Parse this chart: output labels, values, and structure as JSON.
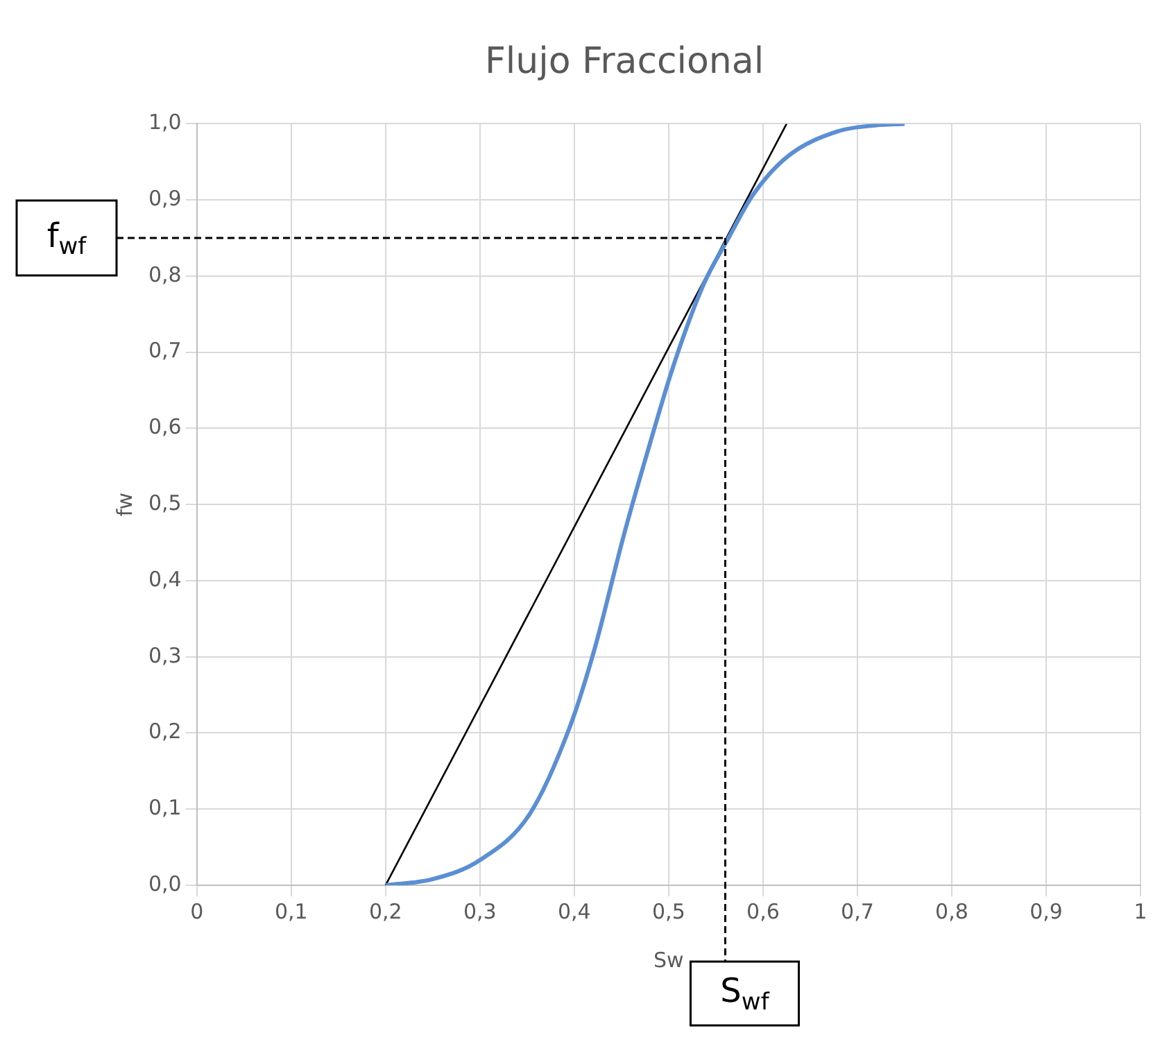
{
  "chart_data": {
    "type": "line",
    "title": "Flujo Fraccional",
    "xlabel": "Sw",
    "ylabel": "fw",
    "xlim": [
      0,
      1
    ],
    "ylim": [
      0,
      1
    ],
    "xticks": [
      0,
      {
        "value": 0.1,
        "label": "0,1"
      },
      {
        "value": 0.2,
        "label": "0,2"
      },
      {
        "value": 0.3,
        "label": "0,3"
      },
      {
        "value": 0.4,
        "label": "0,4"
      },
      {
        "value": 0.5,
        "label": "0,5"
      },
      {
        "value": 0.6,
        "label": "0,6"
      },
      {
        "value": 0.7,
        "label": "0,7"
      },
      {
        "value": 0.8,
        "label": "0,8"
      },
      {
        "value": 0.9,
        "label": "0,9"
      },
      1
    ],
    "yticks": [
      {
        "value": 0,
        "label": "0,0"
      },
      {
        "value": 0.1,
        "label": "0,1"
      },
      {
        "value": 0.2,
        "label": "0,2"
      },
      {
        "value": 0.3,
        "label": "0,3"
      },
      {
        "value": 0.4,
        "label": "0,4"
      },
      {
        "value": 0.5,
        "label": "0,5"
      },
      {
        "value": 0.6,
        "label": "0,6"
      },
      {
        "value": 0.7,
        "label": "0,7"
      },
      {
        "value": 0.8,
        "label": "0,8"
      },
      {
        "value": 0.9,
        "label": "0,9"
      },
      {
        "value": 1,
        "label": "1,0"
      }
    ],
    "grid": true,
    "legend": false,
    "marker": "none",
    "series": [
      {
        "color": "#5b8fd4",
        "line_style": "solid",
        "x": [
          0.2,
          0.25,
          0.3,
          0.353,
          0.395,
          0.421,
          0.453,
          0.479,
          0.505,
          0.537,
          0.563,
          0.589,
          0.626,
          0.679,
          0.72,
          0.75
        ],
        "values": [
          0,
          0.008,
          0.033,
          0.094,
          0.207,
          0.308,
          0.462,
          0.575,
          0.682,
          0.789,
          0.849,
          0.906,
          0.957,
          0.99,
          0.998,
          1
        ]
      },
      {
        "color": "#000000",
        "line_style": "solid",
        "x": [
          0.2,
          0.625
        ],
        "values": [
          0,
          1
        ]
      }
    ],
    "annotations": [
      {
        "text": "f$_{wf}$",
        "x": 0.56,
        "y": 0.85
      },
      {
        "text": "S$_{wf}$",
        "x": 0.56,
        "y": 0.85
      }
    ]
  }
}
